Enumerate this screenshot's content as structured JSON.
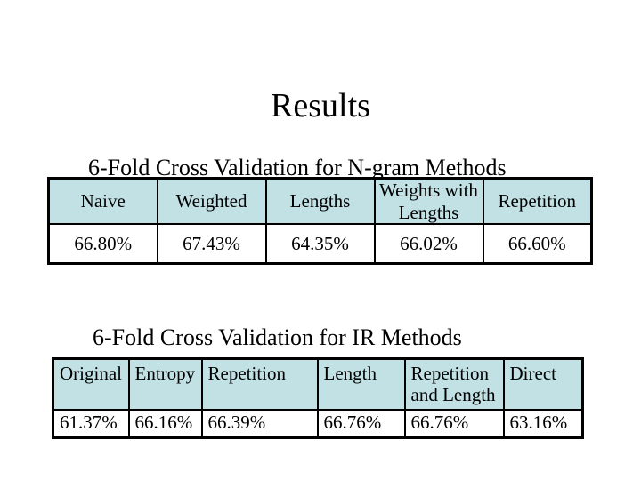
{
  "slide": {
    "title": "Results",
    "colors": {
      "background": "#ffffff",
      "header_cell_bg": "#c2e1e4",
      "table_border": "#000000",
      "text": "#000000"
    },
    "sections": [
      {
        "heading": "6-Fold Cross Validation for N-gram Methods",
        "table": {
          "headers": [
            "Naive",
            "Weighted",
            "Lengths",
            "Weights with Lengths",
            "Repetition"
          ],
          "values": [
            "66.80%",
            "67.43%",
            "64.35%",
            "66.02%",
            "66.60%"
          ]
        }
      },
      {
        "heading": "6-Fold Cross Validation for IR Methods",
        "table": {
          "headers": [
            "Original",
            "Entropy",
            "Repetition",
            "Length",
            "Repetition and Length",
            "Direct"
          ],
          "values": [
            "61.37%",
            "66.16%",
            "66.39%",
            "66.76%",
            "66.76%",
            "63.16%"
          ]
        }
      }
    ]
  },
  "chart_data": [
    {
      "type": "table",
      "title": "6-Fold Cross Validation for N-gram Methods",
      "categories": [
        "Naive",
        "Weighted",
        "Lengths",
        "Weights with Lengths",
        "Repetition"
      ],
      "values": [
        66.8,
        67.43,
        64.35,
        66.02,
        66.6
      ],
      "unit": "%"
    },
    {
      "type": "table",
      "title": "6-Fold Cross Validation for IR Methods",
      "categories": [
        "Original",
        "Entropy",
        "Repetition",
        "Length",
        "Repetition and Length",
        "Direct"
      ],
      "values": [
        61.37,
        66.16,
        66.39,
        66.76,
        66.76,
        63.16
      ],
      "unit": "%"
    }
  ]
}
